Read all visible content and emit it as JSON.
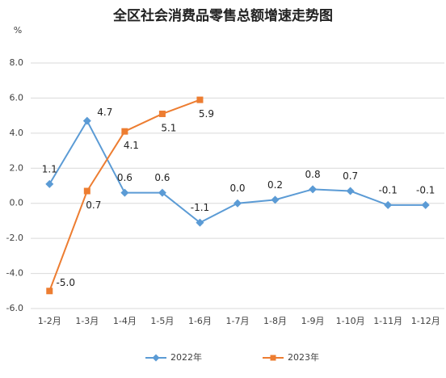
{
  "chart_data": {
    "type": "line",
    "title": "全区社会消费品零售总额增速走势图",
    "y_unit": "%",
    "categories": [
      "1-2月",
      "1-3月",
      "1-4月",
      "1-5月",
      "1-6月",
      "1-7月",
      "1-8月",
      "1-9月",
      "1-10月",
      "1-11月",
      "1-12月"
    ],
    "series": [
      {
        "name": "2022年",
        "color": "#5b9bd5",
        "marker": "diamond",
        "values": [
          1.1,
          4.7,
          0.6,
          0.6,
          -1.1,
          0.0,
          0.2,
          0.8,
          0.7,
          -0.1,
          -0.1
        ],
        "value_labels": [
          "1.1",
          "4.7",
          "0.6",
          "0.6",
          "-1.1",
          "0.0",
          "0.2",
          "0.8",
          "0.7",
          "-0.1",
          "-0.1"
        ]
      },
      {
        "name": "2023年",
        "color": "#ed7d31",
        "marker": "square",
        "values": [
          -5.0,
          0.7,
          4.1,
          5.1,
          5.9,
          null,
          null,
          null,
          null,
          null,
          null
        ],
        "value_labels": [
          "-5.0",
          "0.7",
          "4.1",
          "5.1",
          "5.9",
          null,
          null,
          null,
          null,
          null,
          null
        ]
      }
    ],
    "ylim": [
      -6,
      8
    ],
    "yticks": [
      {
        "value": -6,
        "label": "-6.0"
      },
      {
        "value": -4,
        "label": "-4.0"
      },
      {
        "value": -2,
        "label": "-2.0"
      },
      {
        "value": 0,
        "label": "0.0"
      },
      {
        "value": 2,
        "label": "2.0"
      },
      {
        "value": 4,
        "label": "4.0"
      },
      {
        "value": 6,
        "label": "6.0"
      },
      {
        "value": 8,
        "label": "8.0"
      }
    ],
    "grid": true,
    "legend": "bottom"
  }
}
